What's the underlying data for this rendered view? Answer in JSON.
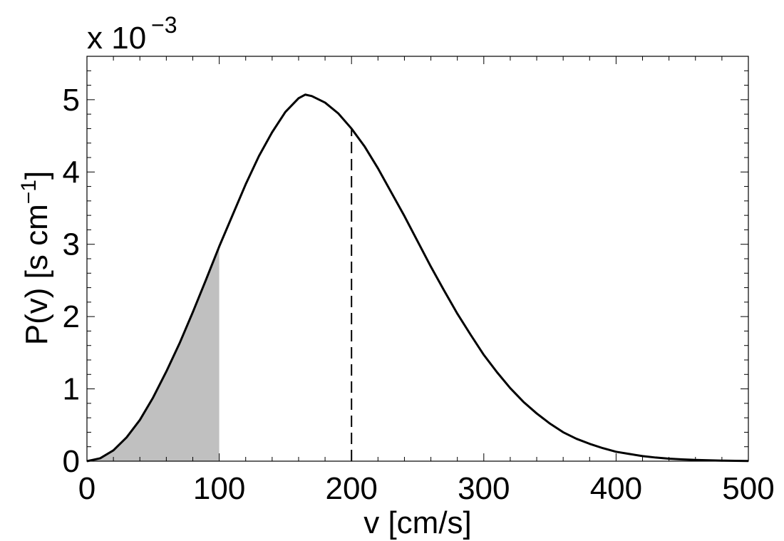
{
  "chart_data": {
    "type": "line",
    "xlabel": "v [cm/s]",
    "ylabel_main": "P(v) [s cm",
    "ylabel_sup": "−1",
    "ylabel_close": "]",
    "y_multiplier": {
      "base": "x 10",
      "exponent": "−3"
    },
    "xlim": [
      0,
      500
    ],
    "ylim": [
      0,
      5.6
    ],
    "x_ticks": [
      0,
      100,
      200,
      300,
      400,
      500
    ],
    "x_tick_labels": [
      "0",
      "100",
      "200",
      "300",
      "400",
      "500"
    ],
    "y_ticks": [
      0,
      1,
      2,
      3,
      4,
      5
    ],
    "y_tick_labels": [
      "0",
      "1",
      "2",
      "3",
      "4",
      "5"
    ],
    "grid": false,
    "curve": {
      "x": [
        0,
        10,
        20,
        30,
        40,
        50,
        60,
        70,
        80,
        90,
        100,
        110,
        120,
        130,
        140,
        150,
        160,
        165,
        170,
        180,
        190,
        200,
        210,
        220,
        230,
        240,
        250,
        260,
        270,
        280,
        290,
        300,
        310,
        320,
        330,
        340,
        350,
        360,
        370,
        380,
        390,
        400,
        410,
        420,
        430,
        440,
        450,
        460,
        470,
        480,
        490,
        500
      ],
      "y": [
        0,
        0.04,
        0.15,
        0.33,
        0.57,
        0.88,
        1.24,
        1.63,
        2.06,
        2.51,
        2.97,
        3.4,
        3.83,
        4.22,
        4.55,
        4.83,
        5.02,
        5.07,
        5.05,
        4.96,
        4.81,
        4.6,
        4.35,
        4.05,
        3.72,
        3.39,
        3.04,
        2.69,
        2.36,
        2.04,
        1.75,
        1.47,
        1.23,
        1.01,
        0.82,
        0.66,
        0.52,
        0.4,
        0.31,
        0.24,
        0.18,
        0.13,
        0.1,
        0.07,
        0.05,
        0.035,
        0.025,
        0.017,
        0.012,
        0.008,
        0.005,
        0.003
      ]
    },
    "shaded_region": {
      "from": 0,
      "to": 100,
      "color": "#c0c0c0"
    },
    "vertical_dashed_line": {
      "x": 200
    },
    "line_color": "#000000"
  }
}
